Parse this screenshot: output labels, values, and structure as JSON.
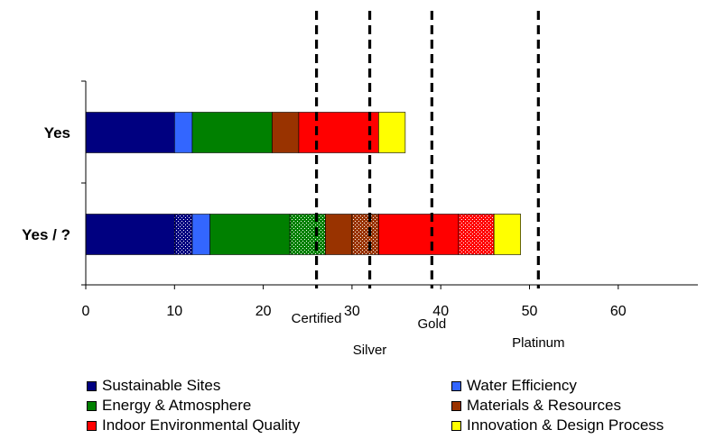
{
  "chart_data": {
    "type": "bar",
    "orientation": "horizontal",
    "stacked": true,
    "categories": [
      "Yes",
      "Yes / ?"
    ],
    "xlim": [
      0,
      69
    ],
    "x_ticks": [
      0,
      10,
      20,
      30,
      40,
      50,
      60
    ],
    "grid": false,
    "legend_position": "bottom",
    "series": [
      {
        "name": "Sustainable Sites",
        "color": "#000080",
        "pattern": "solid",
        "segments": [
          {
            "category": "Yes",
            "start": 0,
            "end": 10
          },
          {
            "category": "Yes / ?",
            "start": 0,
            "end": 10
          }
        ]
      },
      {
        "name": "Sustainable Sites",
        "color": "#000080",
        "pattern": "dotted",
        "legend": false,
        "segments": [
          {
            "category": "Yes / ?",
            "start": 10,
            "end": 12
          }
        ]
      },
      {
        "name": "Water Efficiency",
        "color": "#3366FF",
        "pattern": "solid",
        "segments": [
          {
            "category": "Yes",
            "start": 10,
            "end": 12
          },
          {
            "category": "Yes / ?",
            "start": 12,
            "end": 14
          }
        ]
      },
      {
        "name": "Energy & Atmosphere",
        "color": "#008000",
        "pattern": "solid",
        "segments": [
          {
            "category": "Yes",
            "start": 12,
            "end": 21
          },
          {
            "category": "Yes / ?",
            "start": 14,
            "end": 23
          }
        ]
      },
      {
        "name": "Energy & Atmosphere",
        "color": "#008000",
        "pattern": "dotted",
        "legend": false,
        "segments": [
          {
            "category": "Yes / ?",
            "start": 23,
            "end": 27
          }
        ]
      },
      {
        "name": "Materials & Resources",
        "color": "#993300",
        "pattern": "solid",
        "segments": [
          {
            "category": "Yes",
            "start": 21,
            "end": 24
          },
          {
            "category": "Yes / ?",
            "start": 27,
            "end": 30
          }
        ]
      },
      {
        "name": "Materials & Resources",
        "color": "#993300",
        "pattern": "dotted",
        "legend": false,
        "segments": [
          {
            "category": "Yes / ?",
            "start": 30,
            "end": 33
          }
        ]
      },
      {
        "name": "Indoor Environmental Quality",
        "color": "#FF0000",
        "pattern": "solid",
        "segments": [
          {
            "category": "Yes",
            "start": 24,
            "end": 33
          },
          {
            "category": "Yes / ?",
            "start": 33,
            "end": 42
          }
        ]
      },
      {
        "name": "Indoor Environmental Quality",
        "color": "#FF0000",
        "pattern": "dotted",
        "legend": false,
        "segments": [
          {
            "category": "Yes / ?",
            "start": 42,
            "end": 46
          }
        ]
      },
      {
        "name": "Innovation & Design Process",
        "color": "#FFFF00",
        "pattern": "solid",
        "segments": [
          {
            "category": "Yes",
            "start": 33,
            "end": 36
          },
          {
            "category": "Yes / ?",
            "start": 46,
            "end": 49
          }
        ]
      }
    ],
    "thresholds": [
      {
        "label": "Certified",
        "value": 26
      },
      {
        "label": "Silver",
        "value": 32
      },
      {
        "label": "Gold",
        "value": 39
      },
      {
        "label": "Platinum",
        "value": 51
      }
    ],
    "legend": [
      {
        "label": "Sustainable Sites",
        "color": "#000080"
      },
      {
        "label": "Water Efficiency",
        "color": "#3366FF"
      },
      {
        "label": "Energy & Atmosphere",
        "color": "#008000"
      },
      {
        "label": "Materials & Resources",
        "color": "#993300"
      },
      {
        "label": "Indoor Environmental Quality",
        "color": "#FF0000"
      },
      {
        "label": "Innovation & Design Process",
        "color": "#FFFF00"
      }
    ]
  }
}
